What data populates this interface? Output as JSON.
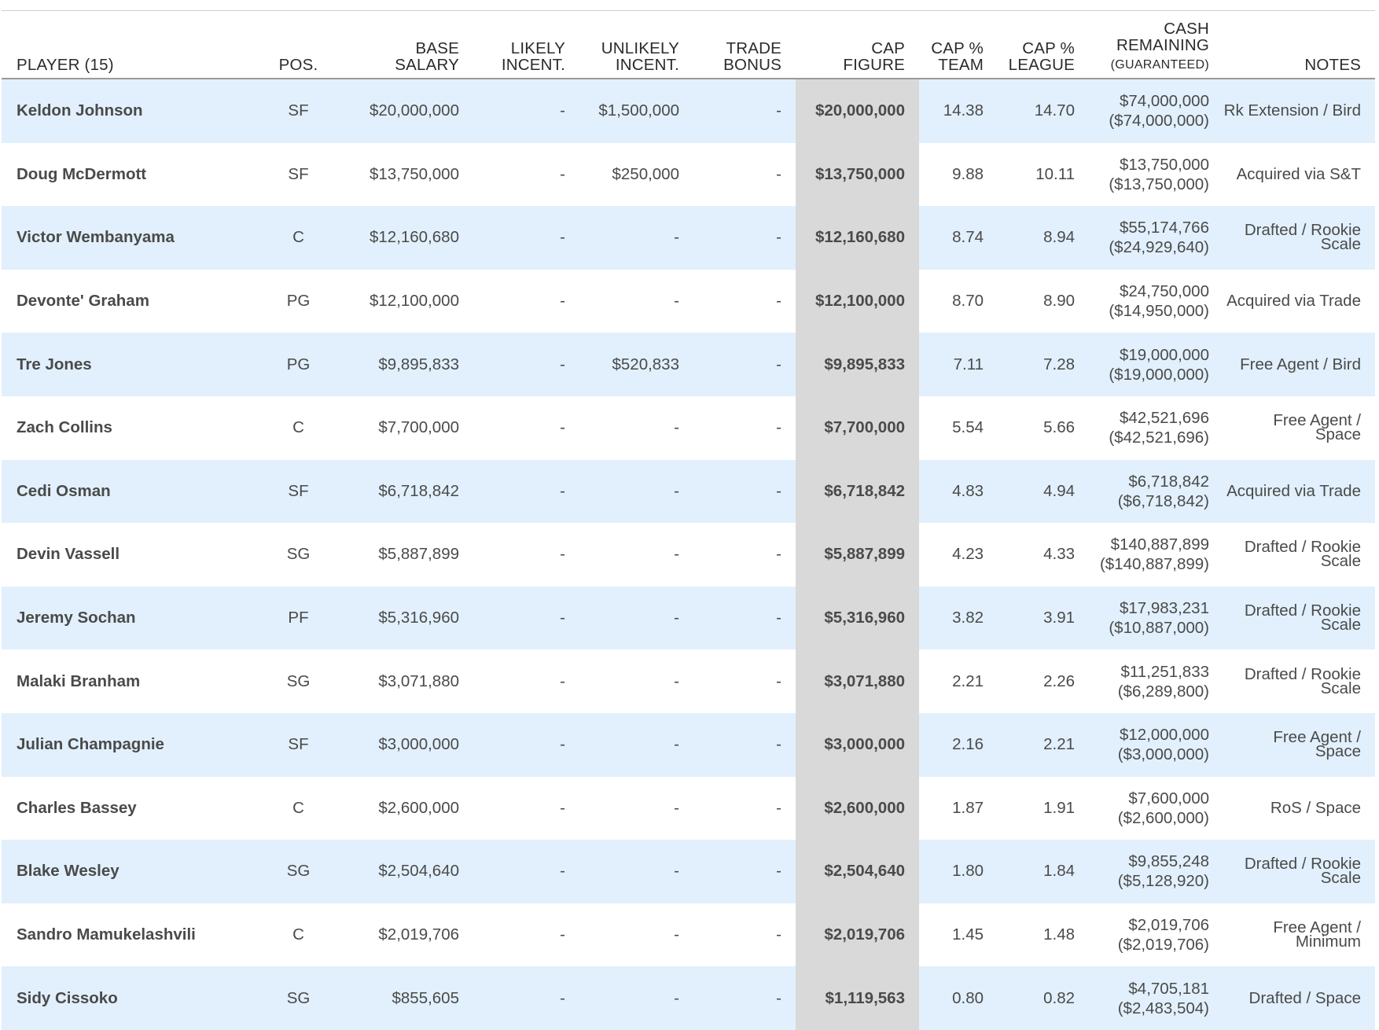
{
  "table": {
    "headers": {
      "player": "PLAYER (15)",
      "pos": "POS.",
      "base_salary": [
        "BASE",
        "SALARY"
      ],
      "likely": [
        "LIKELY",
        "INCENT."
      ],
      "unlikely": [
        "UNLIKELY",
        "INCENT."
      ],
      "trade": [
        "TRADE",
        "BONUS"
      ],
      "cap_figure": [
        "CAP",
        "FIGURE"
      ],
      "cap_team": [
        "CAP %",
        "TEAM"
      ],
      "cap_league": [
        "CAP %",
        "LEAGUE"
      ],
      "cash": [
        "CASH",
        "REMAINING",
        "(GUARANTEED)"
      ],
      "notes": "NOTES"
    },
    "rows": [
      {
        "player": "Keldon Johnson",
        "pos": "SF",
        "base": "$20,000,000",
        "likely": "-",
        "unlikely": "$1,500,000",
        "trade": "-",
        "cap": "$20,000,000",
        "team": "14.38",
        "league": "14.70",
        "cash": "$74,000,000",
        "guaranteed": "($74,000,000)",
        "notes": [
          "Rk Extension / Bird"
        ]
      },
      {
        "player": "Doug McDermott",
        "pos": "SF",
        "base": "$13,750,000",
        "likely": "-",
        "unlikely": "$250,000",
        "trade": "-",
        "cap": "$13,750,000",
        "team": "9.88",
        "league": "10.11",
        "cash": "$13,750,000",
        "guaranteed": "($13,750,000)",
        "notes": [
          "Acquired via S&T"
        ]
      },
      {
        "player": "Victor Wembanyama",
        "pos": "C",
        "base": "$12,160,680",
        "likely": "-",
        "unlikely": "-",
        "trade": "-",
        "cap": "$12,160,680",
        "team": "8.74",
        "league": "8.94",
        "cash": "$55,174,766",
        "guaranteed": "($24,929,640)",
        "notes": [
          "Drafted / Rookie",
          "Scale"
        ]
      },
      {
        "player": "Devonte' Graham",
        "pos": "PG",
        "base": "$12,100,000",
        "likely": "-",
        "unlikely": "-",
        "trade": "-",
        "cap": "$12,100,000",
        "team": "8.70",
        "league": "8.90",
        "cash": "$24,750,000",
        "guaranteed": "($14,950,000)",
        "notes": [
          "Acquired via Trade"
        ]
      },
      {
        "player": "Tre Jones",
        "pos": "PG",
        "base": "$9,895,833",
        "likely": "-",
        "unlikely": "$520,833",
        "trade": "-",
        "cap": "$9,895,833",
        "team": "7.11",
        "league": "7.28",
        "cash": "$19,000,000",
        "guaranteed": "($19,000,000)",
        "notes": [
          "Free Agent / Bird"
        ]
      },
      {
        "player": "Zach Collins",
        "pos": "C",
        "base": "$7,700,000",
        "likely": "-",
        "unlikely": "-",
        "trade": "-",
        "cap": "$7,700,000",
        "team": "5.54",
        "league": "5.66",
        "cash": "$42,521,696",
        "guaranteed": "($42,521,696)",
        "notes": [
          "Free Agent / Space"
        ]
      },
      {
        "player": "Cedi Osman",
        "pos": "SF",
        "base": "$6,718,842",
        "likely": "-",
        "unlikely": "-",
        "trade": "-",
        "cap": "$6,718,842",
        "team": "4.83",
        "league": "4.94",
        "cash": "$6,718,842",
        "guaranteed": "($6,718,842)",
        "notes": [
          "Acquired via Trade"
        ]
      },
      {
        "player": "Devin Vassell",
        "pos": "SG",
        "base": "$5,887,899",
        "likely": "-",
        "unlikely": "-",
        "trade": "-",
        "cap": "$5,887,899",
        "team": "4.23",
        "league": "4.33",
        "cash": "$140,887,899",
        "guaranteed": "($140,887,899)",
        "notes": [
          "Drafted / Rookie",
          "Scale"
        ]
      },
      {
        "player": "Jeremy Sochan",
        "pos": "PF",
        "base": "$5,316,960",
        "likely": "-",
        "unlikely": "-",
        "trade": "-",
        "cap": "$5,316,960",
        "team": "3.82",
        "league": "3.91",
        "cash": "$17,983,231",
        "guaranteed": "($10,887,000)",
        "notes": [
          "Drafted / Rookie",
          "Scale"
        ]
      },
      {
        "player": "Malaki Branham",
        "pos": "SG",
        "base": "$3,071,880",
        "likely": "-",
        "unlikely": "-",
        "trade": "-",
        "cap": "$3,071,880",
        "team": "2.21",
        "league": "2.26",
        "cash": "$11,251,833",
        "guaranteed": "($6,289,800)",
        "notes": [
          "Drafted / Rookie",
          "Scale"
        ]
      },
      {
        "player": "Julian Champagnie",
        "pos": "SF",
        "base": "$3,000,000",
        "likely": "-",
        "unlikely": "-",
        "trade": "-",
        "cap": "$3,000,000",
        "team": "2.16",
        "league": "2.21",
        "cash": "$12,000,000",
        "guaranteed": "($3,000,000)",
        "notes": [
          "Free Agent / Space"
        ]
      },
      {
        "player": "Charles Bassey",
        "pos": "C",
        "base": "$2,600,000",
        "likely": "-",
        "unlikely": "-",
        "trade": "-",
        "cap": "$2,600,000",
        "team": "1.87",
        "league": "1.91",
        "cash": "$7,600,000",
        "guaranteed": "($2,600,000)",
        "notes": [
          "RoS / Space"
        ]
      },
      {
        "player": "Blake Wesley",
        "pos": "SG",
        "base": "$2,504,640",
        "likely": "-",
        "unlikely": "-",
        "trade": "-",
        "cap": "$2,504,640",
        "team": "1.80",
        "league": "1.84",
        "cash": "$9,855,248",
        "guaranteed": "($5,128,920)",
        "notes": [
          "Drafted / Rookie",
          "Scale"
        ]
      },
      {
        "player": "Sandro Mamukelashvili",
        "pos": "C",
        "base": "$2,019,706",
        "likely": "-",
        "unlikely": "-",
        "trade": "-",
        "cap": "$2,019,706",
        "team": "1.45",
        "league": "1.48",
        "cash": "$2,019,706",
        "guaranteed": "($2,019,706)",
        "notes": [
          "Free Agent / Minimum"
        ]
      },
      {
        "player": "Sidy Cissoko",
        "pos": "SG",
        "base": "$855,605",
        "likely": "-",
        "unlikely": "-",
        "trade": "-",
        "cap": "$1,119,563",
        "team": "0.80",
        "league": "0.82",
        "cash": "$4,705,181",
        "guaranteed": "($2,483,504)",
        "notes": [
          "Drafted / Space"
        ]
      }
    ]
  },
  "colors": {
    "player_name": "#c8202f",
    "row_alt": "#e1f0fc",
    "cap_column": "#d9d9d9"
  }
}
